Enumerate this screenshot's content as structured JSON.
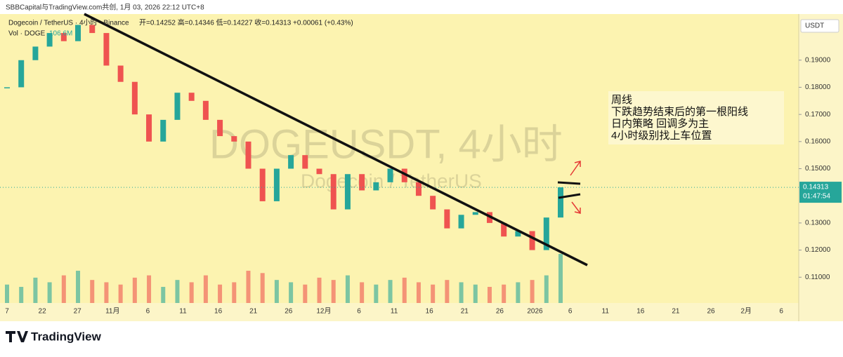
{
  "header": {
    "title": "SBBCapital与TradingView.com共创, 1月 03, 2026 22:12 UTC+8"
  },
  "legend": {
    "symbol": "Dogecoin / TetherUS · 4小时 · Binance",
    "ohlc": "开=0.14252  高=0.14346  低=0.14227  收=0.14313  +0.00061 (+0.43%)",
    "volume_name": "Vol · DOGE",
    "volume_value": "106.6M"
  },
  "watermark": {
    "symbol": "DOGEUSDT, 4小时",
    "name": "Dogecoin / TetherUS"
  },
  "price_axis": {
    "currency": "USDT",
    "ylim": [
      0.1005,
      0.207
    ],
    "ticks": [
      {
        "value": 0.19,
        "label": "0.19000"
      },
      {
        "value": 0.18,
        "label": "0.18000"
      },
      {
        "value": 0.17,
        "label": "0.17000"
      },
      {
        "value": 0.16,
        "label": "0.16000"
      },
      {
        "value": 0.15,
        "label": "0.15000"
      },
      {
        "value": 0.13,
        "label": "0.13000"
      },
      {
        "value": 0.12,
        "label": "0.12000"
      },
      {
        "value": 0.11,
        "label": "0.11000"
      }
    ],
    "last_price": {
      "value": 0.14313,
      "label": "0.14313"
    },
    "countdown": "01:47:54"
  },
  "time_axis": {
    "labels": [
      "7",
      "22",
      "27",
      "11月",
      "6",
      "11",
      "16",
      "21",
      "26",
      "12月",
      "6",
      "11",
      "16",
      "21",
      "26",
      "2026",
      "6",
      "11",
      "16",
      "21",
      "26",
      "2月",
      "6"
    ]
  },
  "annotation": {
    "lines": [
      "周线",
      "下跌趋势结束后的第一根阳线",
      "日内策略 回调多为主",
      "4小时级别找上车位置"
    ]
  },
  "prices": {
    "closes": [
      0.18,
      0.19,
      0.195,
      0.2,
      0.197,
      0.203,
      0.2,
      0.188,
      0.182,
      0.17,
      0.16,
      0.168,
      0.178,
      0.175,
      0.168,
      0.162,
      0.16,
      0.15,
      0.138,
      0.15,
      0.155,
      0.15,
      0.148,
      0.135,
      0.148,
      0.142,
      0.145,
      0.15,
      0.145,
      0.14,
      0.135,
      0.128,
      0.133,
      0.134,
      0.13,
      0.125,
      0.127,
      0.12,
      0.132,
      0.14313
    ],
    "volumes": [
      40,
      35,
      55,
      45,
      60,
      70,
      50,
      45,
      40,
      55,
      60,
      35,
      50,
      45,
      60,
      40,
      45,
      70,
      65,
      50,
      45,
      40,
      55,
      50,
      60,
      45,
      40,
      50,
      55,
      45,
      40,
      50,
      45,
      40,
      35,
      40,
      45,
      50,
      60,
      106.6
    ]
  },
  "footer": {
    "brand": "TradingView"
  }
}
